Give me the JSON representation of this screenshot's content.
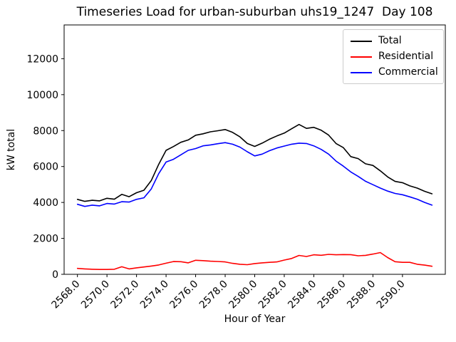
{
  "title": "Timeseries Load for urban-suburban uhs19_1247  Day 108",
  "axes": {
    "x_label": "Hour of Year",
    "y_label": "kW total",
    "x_ticks": [
      "2568.0",
      "2570.0",
      "2572.0",
      "2574.0",
      "2576.0",
      "2578.0",
      "2580.0",
      "2582.0",
      "2584.0",
      "2586.0",
      "2588.0",
      "2590.0"
    ],
    "y_ticks": [
      "0",
      "2000",
      "4000",
      "6000",
      "8000",
      "10000",
      "12000"
    ]
  },
  "legend": {
    "position": "upper right",
    "entries": [
      {
        "label": "Total",
        "color": "#000000"
      },
      {
        "label": "Residential",
        "color": "#ff0000"
      },
      {
        "label": "Commercial",
        "color": "#0000ff"
      }
    ]
  },
  "chart_data": {
    "type": "line",
    "title": "Timeseries Load for urban-suburban uhs19_1247  Day 108",
    "xlabel": "Hour of Year",
    "ylabel": "kW total",
    "xlim": [
      2567.1,
      2592.9
    ],
    "ylim": [
      0,
      13880
    ],
    "grid": false,
    "legend_position": "upper right",
    "x_tick_values": [
      2568,
      2570,
      2572,
      2574,
      2576,
      2578,
      2580,
      2582,
      2584,
      2586,
      2588,
      2590
    ],
    "y_tick_values": [
      0,
      2000,
      4000,
      6000,
      8000,
      10000,
      12000
    ],
    "x": [
      2568.0,
      2568.5,
      2569.0,
      2569.5,
      2570.0,
      2570.5,
      2571.0,
      2571.5,
      2572.0,
      2572.5,
      2573.0,
      2573.5,
      2574.0,
      2574.5,
      2575.0,
      2575.5,
      2576.0,
      2576.5,
      2577.0,
      2577.5,
      2578.0,
      2578.5,
      2579.0,
      2579.5,
      2580.0,
      2580.5,
      2581.0,
      2581.5,
      2582.0,
      2582.5,
      2583.0,
      2583.5,
      2584.0,
      2584.5,
      2585.0,
      2585.5,
      2586.0,
      2586.5,
      2587.0,
      2587.5,
      2588.0,
      2588.5,
      2589.0,
      2589.5,
      2590.0,
      2590.5,
      2591.0,
      2591.5,
      2592.0
    ],
    "series": [
      {
        "name": "Total",
        "color": "#000000",
        "values": [
          4170,
          4060,
          4120,
          4090,
          4230,
          4180,
          4450,
          4320,
          4540,
          4680,
          5220,
          6120,
          6900,
          7110,
          7350,
          7480,
          7740,
          7820,
          7930,
          7990,
          8060,
          7900,
          7650,
          7280,
          7120,
          7300,
          7520,
          7700,
          7860,
          8100,
          8340,
          8120,
          8180,
          8020,
          7750,
          7280,
          7050,
          6550,
          6440,
          6150,
          6060,
          5760,
          5420,
          5170,
          5100,
          4920,
          4800,
          4620,
          4480
        ]
      },
      {
        "name": "Residential",
        "color": "#ff0000",
        "values": [
          330,
          300,
          280,
          270,
          270,
          280,
          420,
          300,
          360,
          410,
          460,
          520,
          620,
          710,
          700,
          640,
          780,
          760,
          730,
          715,
          690,
          610,
          560,
          535,
          600,
          640,
          665,
          690,
          795,
          880,
          1050,
          990,
          1085,
          1060,
          1110,
          1085,
          1100,
          1095,
          1030,
          1055,
          1125,
          1210,
          930,
          700,
          665,
          665,
          560,
          510,
          450
        ]
      },
      {
        "name": "Commercial",
        "color": "#0000ff",
        "values": [
          3900,
          3780,
          3850,
          3810,
          3940,
          3910,
          4040,
          4020,
          4170,
          4260,
          4750,
          5600,
          6250,
          6400,
          6650,
          6900,
          7000,
          7150,
          7200,
          7270,
          7330,
          7240,
          7080,
          6820,
          6590,
          6690,
          6880,
          7030,
          7140,
          7240,
          7300,
          7280,
          7150,
          6950,
          6690,
          6300,
          6020,
          5700,
          5450,
          5180,
          4990,
          4800,
          4630,
          4500,
          4430,
          4310,
          4180,
          4000,
          3850
        ]
      }
    ]
  }
}
